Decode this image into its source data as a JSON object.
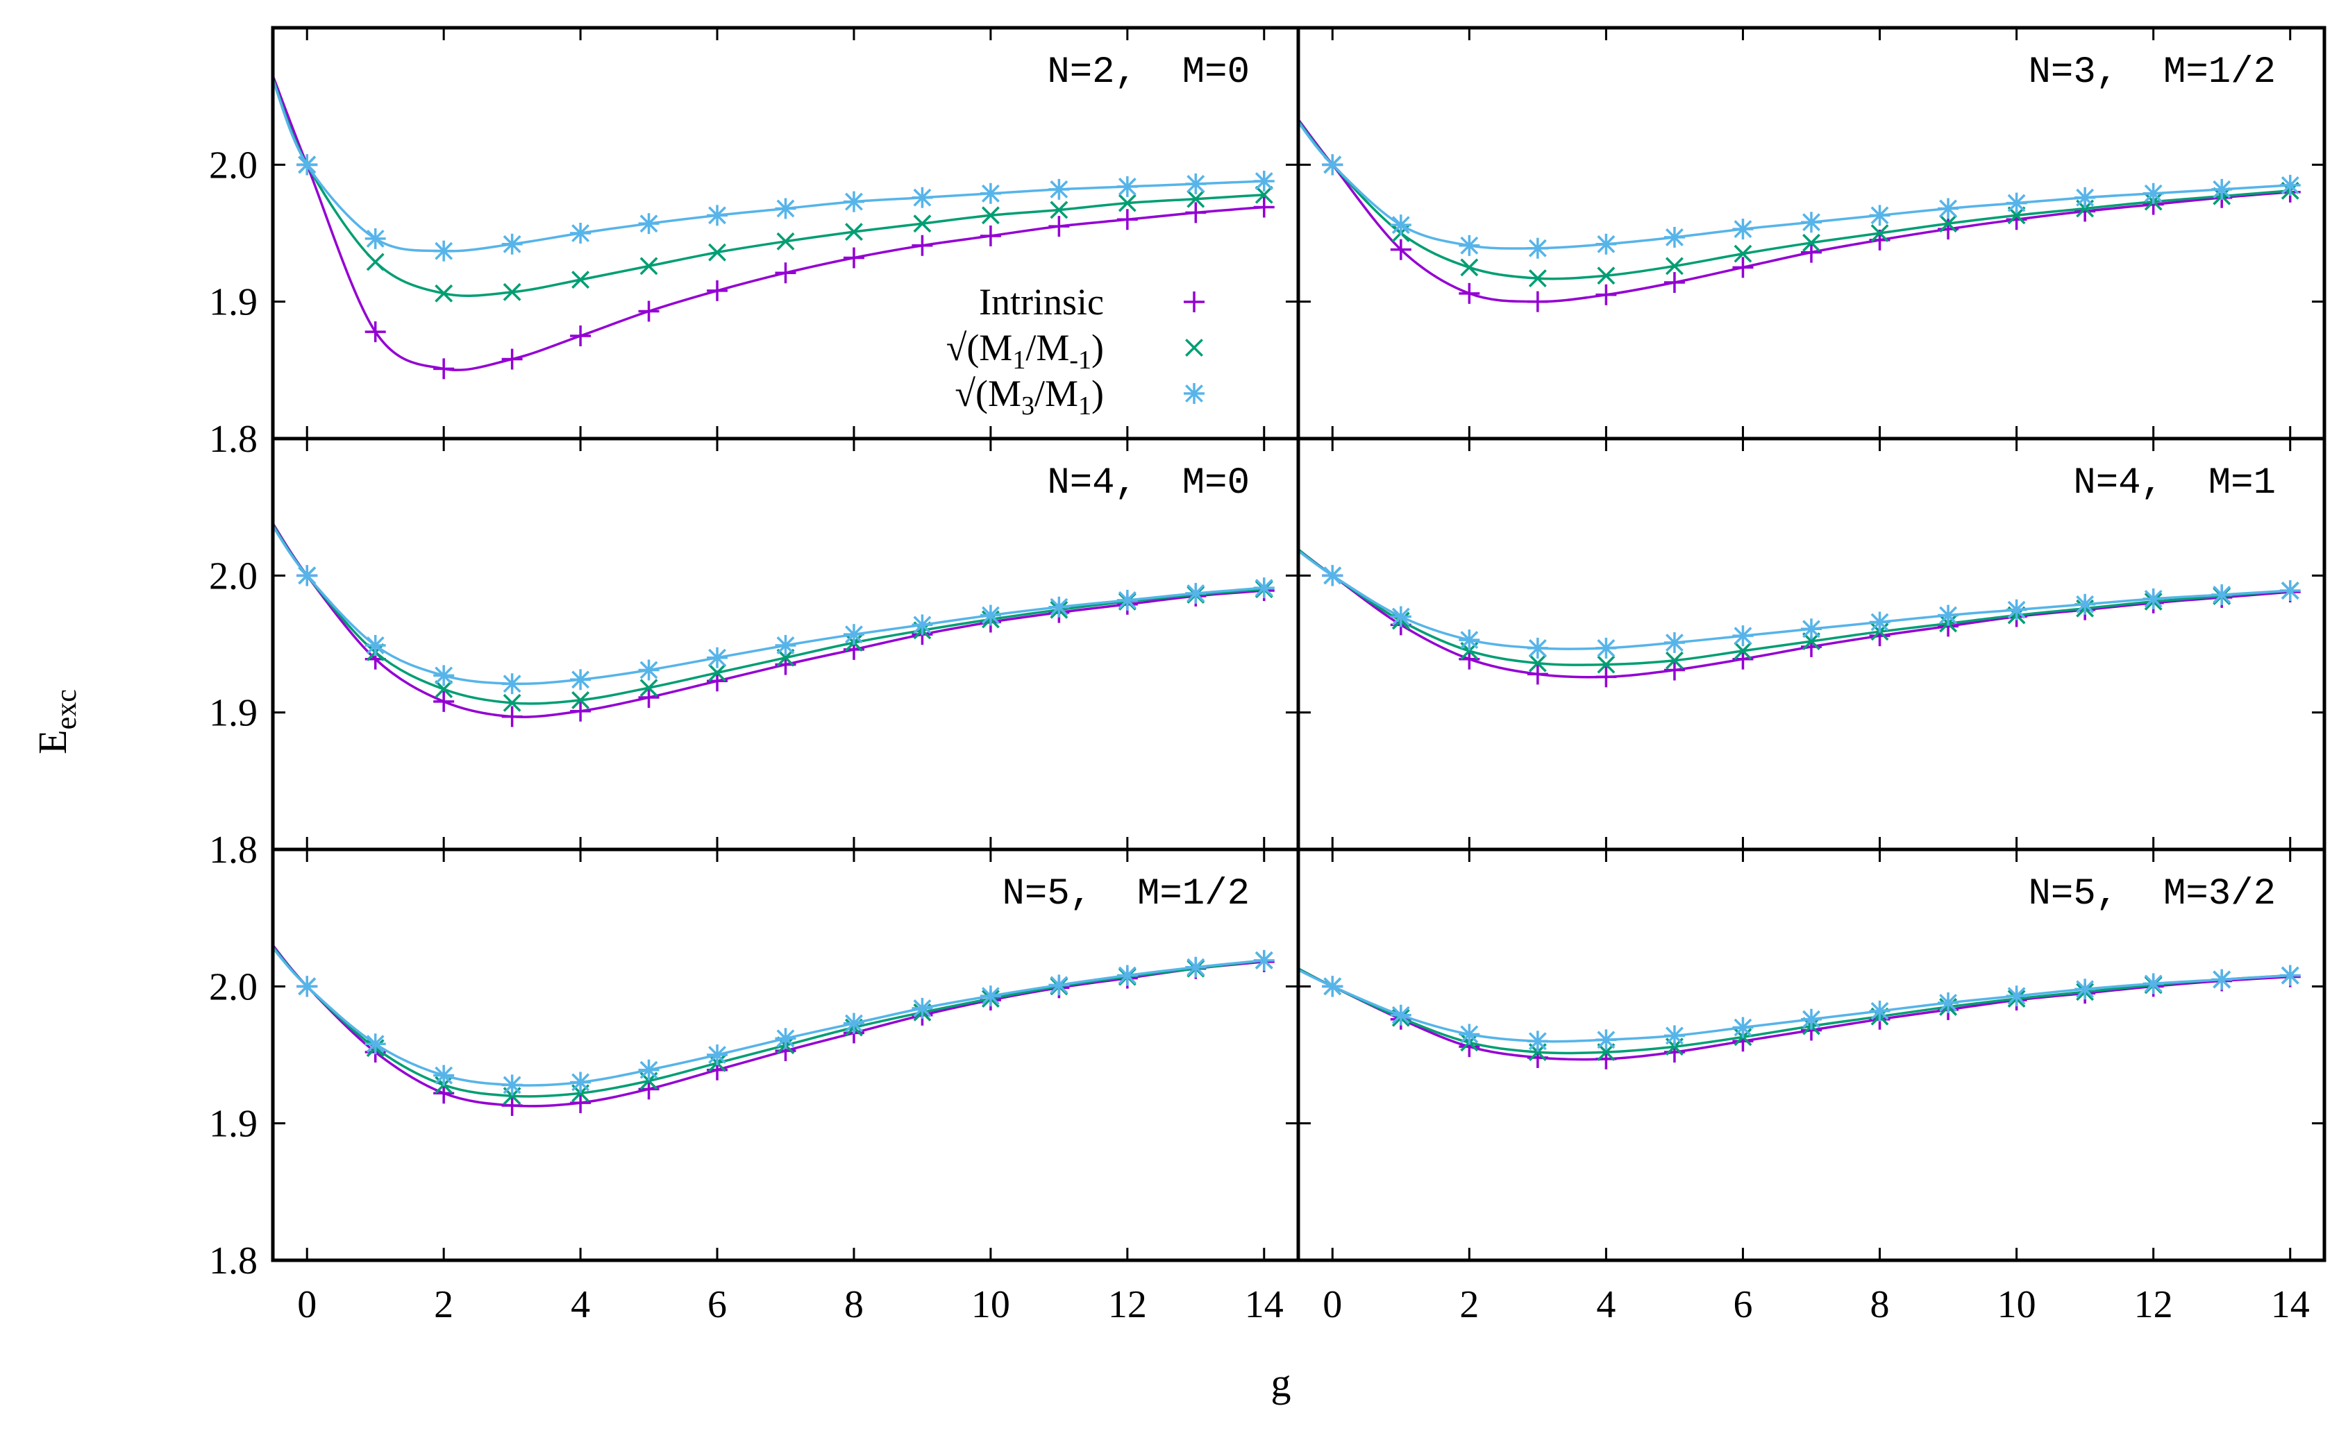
{
  "chart_data": {
    "type": "line",
    "xlabel": "g",
    "ylabel": "E",
    "ylabel_sub": "exc",
    "xlim": [
      -0.5,
      14.5
    ],
    "ylim": [
      1.8,
      2.1
    ],
    "xticks": [
      0,
      2,
      4,
      6,
      8,
      10,
      12,
      14
    ],
    "xtick_labels": [
      "0",
      "2",
      "4",
      "6",
      "8",
      "10",
      "12",
      "14"
    ],
    "yticks": [
      1.8,
      1.9,
      2.0
    ],
    "ytick_labels": [
      "1.8",
      "1.9",
      "2.0"
    ],
    "series_styles": [
      {
        "name": "Intrinsic",
        "marker": "plus",
        "color": "#9400d3"
      },
      {
        "name": "√(M1/M-1)",
        "marker": "cross",
        "color": "#009e73"
      },
      {
        "name": "√(M3/M1)",
        "marker": "star",
        "color": "#56b4e9"
      }
    ],
    "legend": {
      "placement": "panel-1-center",
      "entries": [
        {
          "text": "Intrinsic",
          "parts": [
            "Intrinsic"
          ]
        },
        {
          "text": "√(M1/M-1)",
          "parts": [
            "√(M",
            "1",
            "/M",
            "-1",
            ")"
          ]
        },
        {
          "text": "√(M3/M1)",
          "parts": [
            "√(M",
            "3",
            "/M",
            "1",
            ")"
          ]
        }
      ]
    },
    "panels": [
      {
        "label": "N=2,  M=0",
        "x": [
          0,
          1,
          2,
          3,
          4,
          5,
          6,
          7,
          8,
          9,
          10,
          11,
          12,
          13,
          14
        ],
        "series": [
          {
            "name": "Intrinsic",
            "left": 2.065,
            "values": [
              2.0,
              1.878,
              1.851,
              1.858,
              1.875,
              1.893,
              1.908,
              1.921,
              1.932,
              1.941,
              1.948,
              1.955,
              1.96,
              1.965,
              1.969
            ]
          },
          {
            "name": "√(M1/M-1)",
            "left": 2.063,
            "values": [
              2.0,
              1.929,
              1.906,
              1.907,
              1.916,
              1.926,
              1.936,
              1.944,
              1.951,
              1.957,
              1.963,
              1.967,
              1.972,
              1.975,
              1.978
            ]
          },
          {
            "name": "√(M3/M1)",
            "left": 2.062,
            "values": [
              2.0,
              1.946,
              1.937,
              1.942,
              1.95,
              1.957,
              1.963,
              1.968,
              1.973,
              1.976,
              1.979,
              1.982,
              1.984,
              1.986,
              1.988
            ]
          }
        ]
      },
      {
        "label": "N=3,  M=1/2",
        "x": [
          0,
          1,
          2,
          3,
          4,
          5,
          6,
          7,
          8,
          9,
          10,
          11,
          12,
          13,
          14
        ],
        "series": [
          {
            "name": "Intrinsic",
            "left": 2.033,
            "values": [
              2.0,
              1.938,
              1.906,
              1.9,
              1.905,
              1.914,
              1.925,
              1.936,
              1.945,
              1.953,
              1.96,
              1.966,
              1.971,
              1.976,
              1.98
            ]
          },
          {
            "name": "√(M1/M-1)",
            "left": 2.032,
            "values": [
              2.0,
              1.95,
              1.925,
              1.917,
              1.919,
              1.926,
              1.935,
              1.943,
              1.95,
              1.957,
              1.963,
              1.968,
              1.973,
              1.977,
              1.981
            ]
          },
          {
            "name": "√(M3/M1)",
            "left": 2.031,
            "values": [
              2.0,
              1.956,
              1.941,
              1.939,
              1.942,
              1.947,
              1.953,
              1.958,
              1.963,
              1.968,
              1.972,
              1.976,
              1.979,
              1.982,
              1.985
            ]
          }
        ]
      },
      {
        "label": "N=4,  M=0",
        "x": [
          0,
          1,
          2,
          3,
          4,
          5,
          6,
          7,
          8,
          9,
          10,
          11,
          12,
          13,
          14
        ],
        "series": [
          {
            "name": "Intrinsic",
            "left": 2.038,
            "values": [
              2.0,
              1.939,
              1.908,
              1.897,
              1.901,
              1.911,
              1.923,
              1.935,
              1.946,
              1.957,
              1.966,
              1.973,
              1.979,
              1.985,
              1.989
            ]
          },
          {
            "name": "√(M1/M-1)",
            "left": 2.037,
            "values": [
              2.0,
              1.944,
              1.917,
              1.907,
              1.909,
              1.918,
              1.929,
              1.94,
              1.951,
              1.96,
              1.968,
              1.975,
              1.981,
              1.986,
              1.99
            ]
          },
          {
            "name": "√(M3/M1)",
            "left": 2.036,
            "values": [
              2.0,
              1.949,
              1.927,
              1.921,
              1.924,
              1.931,
              1.94,
              1.949,
              1.957,
              1.964,
              1.971,
              1.977,
              1.982,
              1.987,
              1.991
            ]
          }
        ]
      },
      {
        "label": "N=4,  M=1",
        "x": [
          0,
          1,
          2,
          3,
          4,
          5,
          6,
          7,
          8,
          9,
          10,
          11,
          12,
          13,
          14
        ],
        "series": [
          {
            "name": "Intrinsic",
            "left": 2.019,
            "values": [
              2.0,
              1.964,
              1.939,
              1.928,
              1.926,
              1.931,
              1.939,
              1.948,
              1.956,
              1.963,
              1.97,
              1.975,
              1.98,
              1.984,
              1.988
            ]
          },
          {
            "name": "√(M1/M-1)",
            "left": 2.019,
            "values": [
              2.0,
              1.967,
              1.945,
              1.936,
              1.935,
              1.938,
              1.945,
              1.952,
              1.959,
              1.965,
              1.971,
              1.976,
              1.981,
              1.985,
              1.989
            ]
          },
          {
            "name": "√(M3/M1)",
            "left": 2.018,
            "values": [
              2.0,
              1.97,
              1.953,
              1.947,
              1.947,
              1.951,
              1.956,
              1.961,
              1.966,
              1.971,
              1.975,
              1.979,
              1.983,
              1.986,
              1.989
            ]
          }
        ]
      },
      {
        "label": "N=5,  M=1/2",
        "x": [
          0,
          1,
          2,
          3,
          4,
          5,
          6,
          7,
          8,
          9,
          10,
          11,
          12,
          13,
          14
        ],
        "series": [
          {
            "name": "Intrinsic",
            "left": 2.03,
            "values": [
              2.0,
              1.952,
              1.922,
              1.913,
              1.915,
              1.925,
              1.939,
              1.953,
              1.966,
              1.979,
              1.99,
              1.999,
              2.006,
              2.013,
              2.018
            ]
          },
          {
            "name": "√(M1/M-1)",
            "left": 2.029,
            "values": [
              2.0,
              1.955,
              1.928,
              1.92,
              1.922,
              1.931,
              1.944,
              1.957,
              1.97,
              1.981,
              1.991,
              2.0,
              2.007,
              2.013,
              2.019
            ]
          },
          {
            "name": "√(M3/M1)",
            "left": 2.028,
            "values": [
              2.0,
              1.958,
              1.935,
              1.928,
              1.93,
              1.939,
              1.95,
              1.962,
              1.973,
              1.984,
              1.993,
              2.001,
              2.008,
              2.014,
              2.019
            ]
          }
        ]
      },
      {
        "label": "N=5,  M=3/2",
        "x": [
          0,
          1,
          2,
          3,
          4,
          5,
          6,
          7,
          8,
          9,
          10,
          11,
          12,
          13,
          14
        ],
        "series": [
          {
            "name": "Intrinsic",
            "left": 2.013,
            "values": [
              2.0,
              1.976,
              1.956,
              1.948,
              1.947,
              1.952,
              1.96,
              1.968,
              1.976,
              1.983,
              1.99,
              1.995,
              2.0,
              2.004,
              2.007
            ]
          },
          {
            "name": "√(M1/M-1)",
            "left": 2.013,
            "values": [
              2.0,
              1.977,
              1.959,
              1.952,
              1.952,
              1.956,
              1.963,
              1.971,
              1.978,
              1.985,
              1.991,
              1.996,
              2.001,
              2.005,
              2.008
            ]
          },
          {
            "name": "√(M3/M1)",
            "left": 2.012,
            "values": [
              2.0,
              1.979,
              1.965,
              1.96,
              1.961,
              1.964,
              1.97,
              1.976,
              1.982,
              1.988,
              1.993,
              1.998,
              2.002,
              2.005,
              2.008
            ]
          }
        ]
      }
    ]
  }
}
